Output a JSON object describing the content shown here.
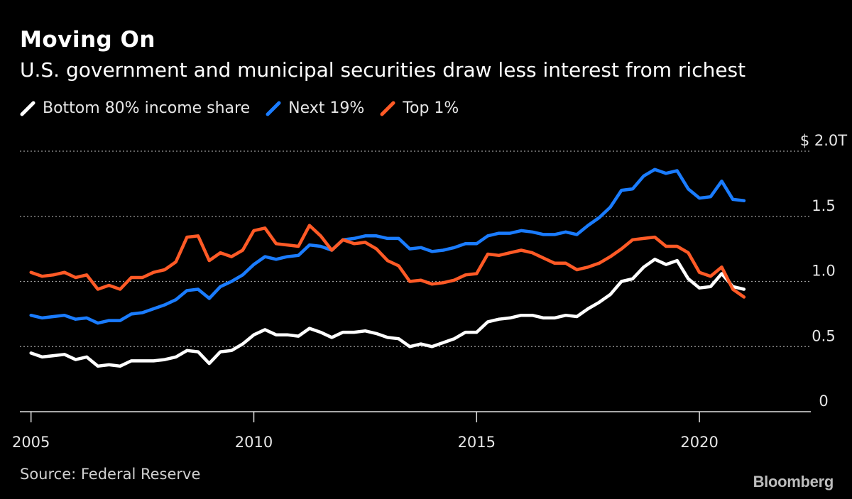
{
  "title": "Moving On",
  "subtitle": "U.S. government and municipal securities draw less interest from richest",
  "source": "Source: Federal Reserve",
  "brand": "Bloomberg",
  "legend": [
    {
      "label": "Bottom 80% income share",
      "color": "#ffffff"
    },
    {
      "label": "Next 19%",
      "color": "#1a7cff"
    },
    {
      "label": "Top 1%",
      "color": "#ff5a26"
    }
  ],
  "chart_data": {
    "type": "line",
    "title": "Moving On",
    "subtitle": "U.S. government and municipal securities draw less interest from richest",
    "ylim": [
      0,
      2.0
    ],
    "yticks": [
      {
        "value": 0,
        "label": "0"
      },
      {
        "value": 0.5,
        "label": "0.5"
      },
      {
        "value": 1.0,
        "label": "1.0"
      },
      {
        "value": 1.5,
        "label": "1.5"
      },
      {
        "value": 2.0,
        "label": "$ 2.0T"
      }
    ],
    "xlim": [
      2004.75,
      2022.5
    ],
    "xticks": [
      2005,
      2010,
      2015,
      2020
    ],
    "grid": "horizontal dotted",
    "legend_position": "top-left",
    "x": [
      2005.0,
      2005.25,
      2005.5,
      2005.75,
      2006.0,
      2006.25,
      2006.5,
      2006.75,
      2007.0,
      2007.25,
      2007.5,
      2007.75,
      2008.0,
      2008.25,
      2008.5,
      2008.75,
      2009.0,
      2009.25,
      2009.5,
      2009.75,
      2010.0,
      2010.25,
      2010.5,
      2010.75,
      2011.0,
      2011.25,
      2011.5,
      2011.75,
      2012.0,
      2012.25,
      2012.5,
      2012.75,
      2013.0,
      2013.25,
      2013.5,
      2013.75,
      2014.0,
      2014.25,
      2014.5,
      2014.75,
      2015.0,
      2015.25,
      2015.5,
      2015.75,
      2016.0,
      2016.25,
      2016.5,
      2016.75,
      2017.0,
      2017.25,
      2017.5,
      2017.75,
      2018.0,
      2018.25,
      2018.5,
      2018.75,
      2019.0,
      2019.25,
      2019.5,
      2019.75,
      2020.0,
      2020.25,
      2020.5,
      2020.75,
      2021.0,
      2021.25,
      2021.5
    ],
    "series": [
      {
        "name": "Bottom 80% income share",
        "color": "#ffffff",
        "values": [
          0.45,
          0.42,
          0.43,
          0.44,
          0.4,
          0.42,
          0.35,
          0.36,
          0.35,
          0.39,
          0.39,
          0.39,
          0.4,
          0.42,
          0.47,
          0.46,
          0.37,
          0.46,
          0.47,
          0.52,
          0.59,
          0.63,
          0.59,
          0.59,
          0.58,
          0.64,
          0.61,
          0.57,
          0.61,
          0.61,
          0.62,
          0.6,
          0.57,
          0.56,
          0.5,
          0.52,
          0.5,
          0.53,
          0.56,
          0.61,
          0.61,
          0.69,
          0.71,
          0.72,
          0.74,
          0.74,
          0.72,
          0.72,
          0.74,
          0.73,
          0.79,
          0.84,
          0.9,
          1.0,
          1.02,
          1.11,
          1.17,
          1.13,
          1.16,
          1.02,
          0.95,
          0.96,
          1.06,
          0.96,
          0.94,
          null,
          null
        ]
      },
      {
        "name": "Next 19%",
        "color": "#1a7cff",
        "values": [
          0.74,
          0.72,
          0.73,
          0.74,
          0.71,
          0.72,
          0.68,
          0.7,
          0.7,
          0.75,
          0.76,
          0.79,
          0.82,
          0.86,
          0.93,
          0.94,
          0.87,
          0.96,
          1.0,
          1.05,
          1.13,
          1.19,
          1.17,
          1.19,
          1.2,
          1.28,
          1.27,
          1.24,
          1.32,
          1.33,
          1.35,
          1.35,
          1.33,
          1.33,
          1.25,
          1.26,
          1.23,
          1.24,
          1.26,
          1.29,
          1.29,
          1.35,
          1.37,
          1.37,
          1.39,
          1.38,
          1.36,
          1.36,
          1.38,
          1.36,
          1.43,
          1.49,
          1.57,
          1.7,
          1.71,
          1.81,
          1.86,
          1.83,
          1.85,
          1.71,
          1.64,
          1.65,
          1.77,
          1.63,
          1.62,
          null,
          null
        ]
      },
      {
        "name": "Top 1%",
        "color": "#ff5a26",
        "values": [
          1.07,
          1.04,
          1.05,
          1.07,
          1.03,
          1.05,
          0.94,
          0.97,
          0.94,
          1.03,
          1.03,
          1.07,
          1.09,
          1.15,
          1.34,
          1.35,
          1.16,
          1.22,
          1.19,
          1.24,
          1.39,
          1.41,
          1.29,
          1.28,
          1.27,
          1.43,
          1.35,
          1.24,
          1.32,
          1.29,
          1.3,
          1.25,
          1.16,
          1.12,
          1.0,
          1.01,
          0.98,
          0.99,
          1.01,
          1.05,
          1.06,
          1.21,
          1.2,
          1.22,
          1.24,
          1.22,
          1.18,
          1.14,
          1.14,
          1.09,
          1.11,
          1.14,
          1.19,
          1.25,
          1.32,
          1.33,
          1.34,
          1.27,
          1.27,
          1.22,
          1.07,
          1.04,
          1.11,
          0.94,
          0.88,
          null,
          null
        ]
      }
    ]
  }
}
